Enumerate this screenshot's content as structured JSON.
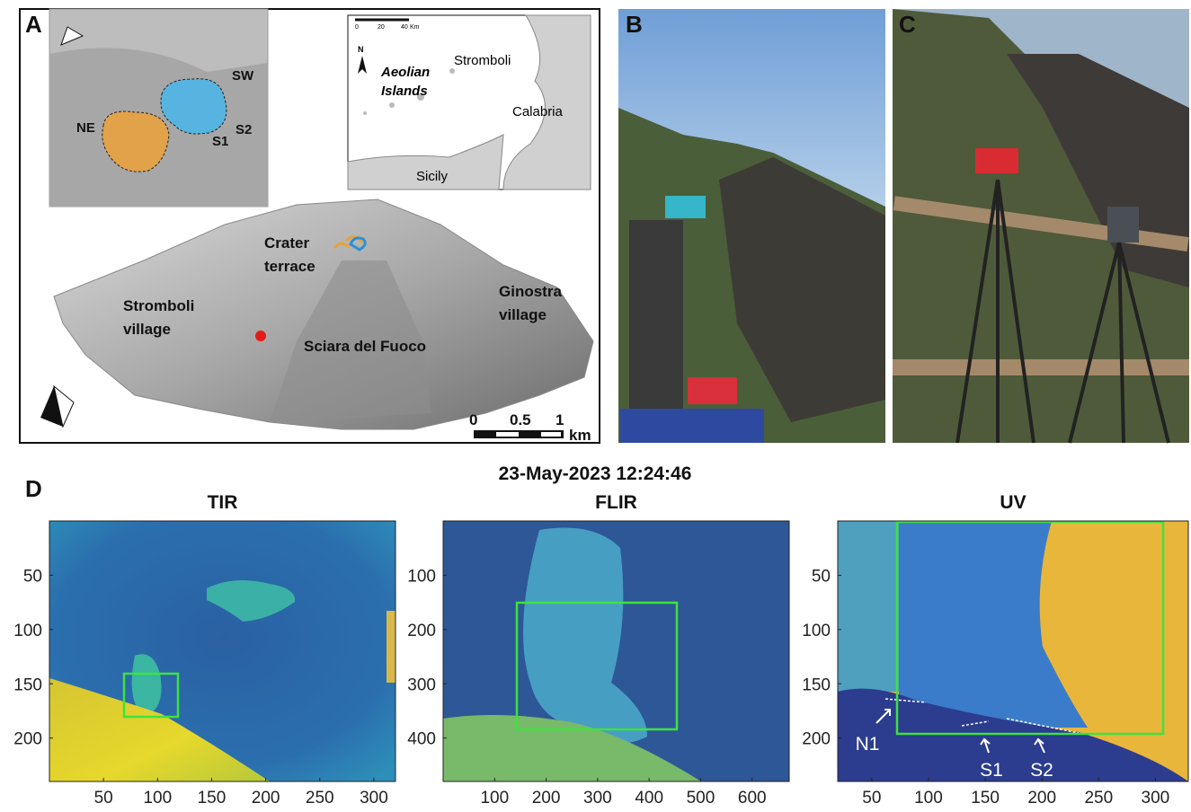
{
  "panel_a": {
    "label": "A",
    "crater_inset": {
      "sw": "SW",
      "ne": "NE",
      "s1": "S1",
      "s2": "S2"
    },
    "area_map": {
      "scale_ticks": [
        "0",
        "20",
        "40"
      ],
      "scale_unit": "Km",
      "north": "N",
      "aeolian": [
        "Aeolian",
        "Islands"
      ],
      "stromboli": "Stromboli",
      "calabria": "Calabria",
      "sicily": "Sicily"
    },
    "crater_terrace": [
      "Crater",
      "terrace"
    ],
    "stromboli_village": [
      "Stromboli",
      "village"
    ],
    "ginostra_village": [
      "Ginostra",
      "village"
    ],
    "sciara": "Sciara del Fuoco",
    "scale_ticks": [
      "0",
      "0.5",
      "1"
    ],
    "scale_unit": "km"
  },
  "panel_b": {
    "label": "B"
  },
  "panel_c": {
    "label": "C"
  },
  "panel_d": {
    "label": "D",
    "title": "23-May-2023 12:24:46",
    "images": [
      {
        "title": "TIR",
        "xlim": [
          0,
          320
        ],
        "ylim": [
          0,
          240
        ],
        "xticks": [
          50,
          100,
          150,
          200,
          250,
          300
        ],
        "yticks": [
          50,
          100,
          150,
          200
        ]
      },
      {
        "title": "FLIR",
        "xlim": [
          0,
          672
        ],
        "ylim": [
          0,
          480
        ],
        "xticks": [
          100,
          200,
          300,
          400,
          500,
          600
        ],
        "yticks": [
          100,
          200,
          300,
          400
        ]
      },
      {
        "title": "UV",
        "xlim": [
          20,
          329
        ],
        "ylim": [
          0,
          240
        ],
        "xticks": [
          50,
          100,
          150,
          200,
          250,
          300
        ],
        "yticks": [
          50,
          100,
          150,
          200
        ]
      }
    ],
    "vents": [
      "N1",
      "S1",
      "S2"
    ]
  }
}
